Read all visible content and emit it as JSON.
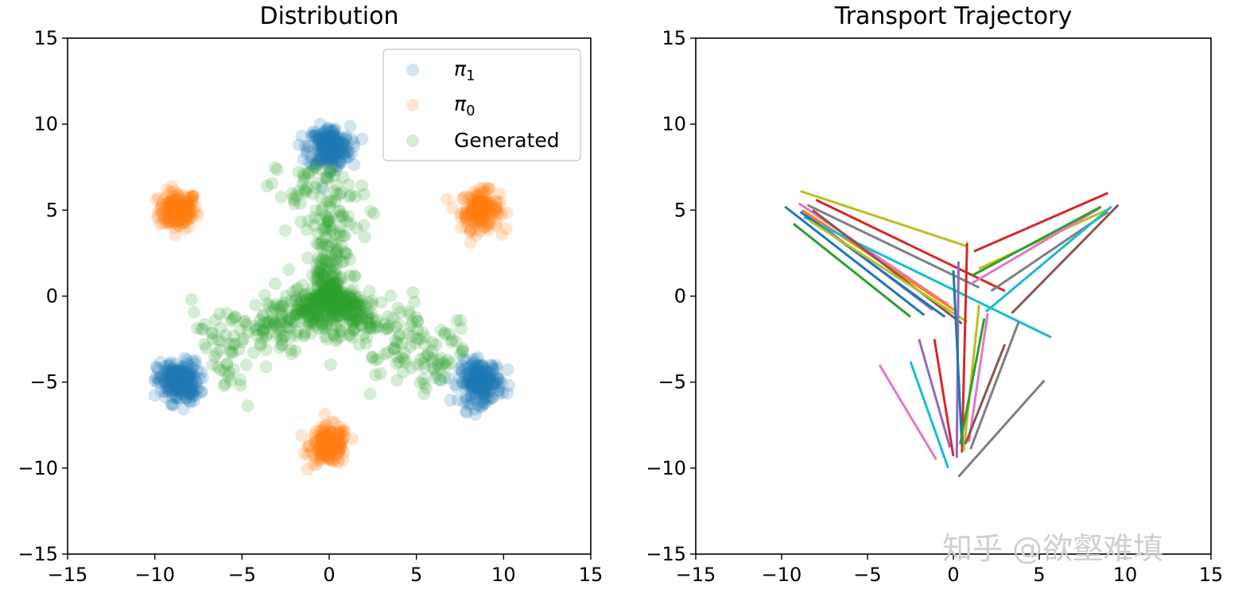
{
  "chart_data": [
    {
      "type": "scatter",
      "title": "Distribution",
      "xlim": [
        -15,
        15
      ],
      "ylim": [
        -15,
        15
      ],
      "xticks": [
        -15,
        -10,
        -5,
        0,
        5,
        10,
        15
      ],
      "yticks": [
        -15,
        -10,
        -5,
        0,
        5,
        10,
        15
      ],
      "tick_labels": [
        "−15",
        "−10",
        "−5",
        "0",
        "5",
        "10",
        "15"
      ],
      "legend_position": "top-right",
      "series": [
        {
          "name": "π₁",
          "name_base": "π",
          "name_sub": "1",
          "color": "#1f77b4",
          "centers": [
            [
              0,
              8.66
            ],
            [
              -8.66,
              -5
            ],
            [
              8.66,
              -5
            ]
          ],
          "spread": 0.8
        },
        {
          "name": "π₀",
          "name_base": "π",
          "name_sub": "0",
          "color": "#ff7f0e",
          "centers": [
            [
              -8.66,
              5
            ],
            [
              8.66,
              5
            ],
            [
              0,
              -8.66
            ]
          ],
          "spread": 0.8
        },
        {
          "name": "Generated",
          "color": "#2ca02c",
          "arms": [
            [
              0,
              7.5
            ],
            [
              -7,
              -3.5
            ],
            [
              7,
              -4.5
            ]
          ]
        }
      ]
    },
    {
      "type": "line",
      "title": "Transport Trajectory",
      "xlim": [
        -15,
        15
      ],
      "ylim": [
        -15,
        15
      ],
      "xticks": [
        -15,
        -10,
        -5,
        0,
        5,
        10,
        15
      ],
      "yticks": [
        -15,
        -10,
        -5,
        0,
        5,
        10,
        15
      ],
      "tick_labels": [
        "−15",
        "−10",
        "−5",
        "0",
        "5",
        "10",
        "15"
      ],
      "segments": [
        {
          "from": [
            -8.9,
            6.1
          ],
          "to": [
            0.8,
            2.9
          ],
          "color": "#bcbd22"
        },
        {
          "from": [
            -8.0,
            5.6
          ],
          "to": [
            3.0,
            0.3
          ],
          "color": "#d62728"
        },
        {
          "from": [
            -9.8,
            5.2
          ],
          "to": [
            -1.7,
            -1.1
          ],
          "color": "#1f77b4"
        },
        {
          "from": [
            -9.3,
            4.2
          ],
          "to": [
            -2.5,
            -1.2
          ],
          "color": "#2ca02c"
        },
        {
          "from": [
            -9.0,
            5.4
          ],
          "to": [
            -0.3,
            -0.5
          ],
          "color": "#e377c2"
        },
        {
          "from": [
            -8.6,
            4.8
          ],
          "to": [
            -1.2,
            -0.8
          ],
          "color": "#9467bd"
        },
        {
          "from": [
            -8.8,
            5.0
          ],
          "to": [
            0.2,
            -0.9
          ],
          "color": "#ff7f0e"
        },
        {
          "from": [
            -8.5,
            5.3
          ],
          "to": [
            1.5,
            0.5
          ],
          "color": "#7f7f7f"
        },
        {
          "from": [
            -8.7,
            4.6
          ],
          "to": [
            5.7,
            -2.4
          ],
          "color": "#17becf"
        },
        {
          "from": [
            -8.2,
            5.0
          ],
          "to": [
            0.5,
            -1.6
          ],
          "color": "#8c564b"
        },
        {
          "from": [
            -8.9,
            4.9
          ],
          "to": [
            -0.5,
            -1.2
          ],
          "color": "#1f77b4"
        },
        {
          "from": [
            -8.4,
            4.4
          ],
          "to": [
            0.8,
            -1.5
          ],
          "color": "#bcbd22"
        },
        {
          "from": [
            1.2,
            2.6
          ],
          "to": [
            9.0,
            6.0
          ],
          "color": "#d62728"
        },
        {
          "from": [
            1.5,
            1.6
          ],
          "to": [
            8.9,
            5.0
          ],
          "color": "#bcbd22"
        },
        {
          "from": [
            1.0,
            0.7
          ],
          "to": [
            8.5,
            5.1
          ],
          "color": "#e377c2"
        },
        {
          "from": [
            2.2,
            0.3
          ],
          "to": [
            9.0,
            4.9
          ],
          "color": "#7f7f7f"
        },
        {
          "from": [
            1.9,
            -0.9
          ],
          "to": [
            9.2,
            5.2
          ],
          "color": "#17becf"
        },
        {
          "from": [
            3.4,
            -1.0
          ],
          "to": [
            9.6,
            5.3
          ],
          "color": "#8c564b"
        },
        {
          "from": [
            1.1,
            1.2
          ],
          "to": [
            8.6,
            5.2
          ],
          "color": "#2ca02c"
        },
        {
          "from": [
            0.3,
            2.0
          ],
          "to": [
            0.2,
            -9.4
          ],
          "color": "#9467bd"
        },
        {
          "from": [
            0.8,
            3.1
          ],
          "to": [
            0.5,
            -9.1
          ],
          "color": "#d62728"
        },
        {
          "from": [
            0.0,
            1.5
          ],
          "to": [
            0.5,
            -8.7
          ],
          "color": "#1f77b4"
        },
        {
          "from": [
            -1.1,
            -2.5
          ],
          "to": [
            0.0,
            -9.3
          ],
          "color": "#d62728"
        },
        {
          "from": [
            -2.0,
            -2.5
          ],
          "to": [
            -0.2,
            -8.8
          ],
          "color": "#9467bd"
        },
        {
          "from": [
            -2.5,
            -3.8
          ],
          "to": [
            -0.3,
            -10.0
          ],
          "color": "#17becf"
        },
        {
          "from": [
            -4.3,
            -4.0
          ],
          "to": [
            -1.0,
            -9.5
          ],
          "color": "#e377c2"
        },
        {
          "from": [
            1.5,
            -0.5
          ],
          "to": [
            0.6,
            -9.0
          ],
          "color": "#bcbd22"
        },
        {
          "from": [
            2.0,
            -1.0
          ],
          "to": [
            0.9,
            -8.5
          ],
          "color": "#e377c2"
        },
        {
          "from": [
            3.0,
            -2.8
          ],
          "to": [
            0.7,
            -8.6
          ],
          "color": "#8c564b"
        },
        {
          "from": [
            3.8,
            -1.5
          ],
          "to": [
            1.0,
            -8.9
          ],
          "color": "#7f7f7f"
        },
        {
          "from": [
            5.3,
            -4.9
          ],
          "to": [
            0.3,
            -10.5
          ],
          "color": "#7f7f7f"
        },
        {
          "from": [
            1.8,
            -1.3
          ],
          "to": [
            0.4,
            -8.6
          ],
          "color": "#2ca02c"
        }
      ]
    }
  ],
  "watermark": "知乎 @欲壑难填"
}
